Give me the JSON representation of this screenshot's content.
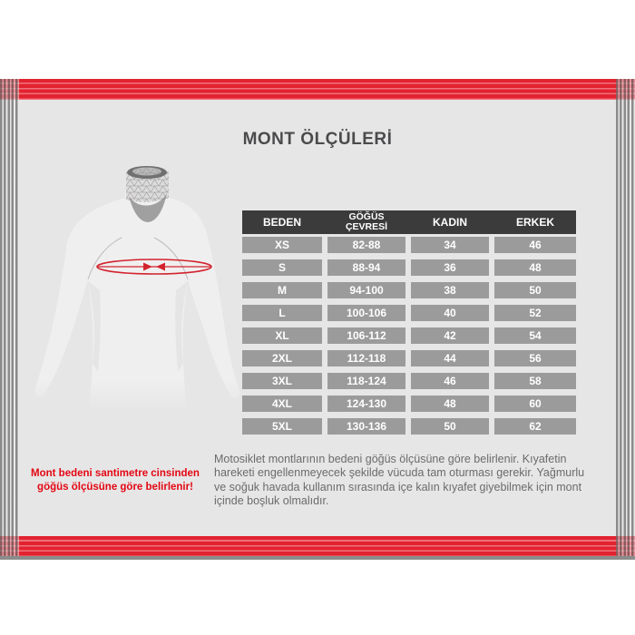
{
  "title": "MONT ÖLÇÜLERİ",
  "size_table": {
    "columns": [
      "BEDEN",
      "GÖĞÜS ÇEVRESİ",
      "KADIN",
      "ERKEK"
    ],
    "rows": [
      [
        "XS",
        "82-88",
        "34",
        "46"
      ],
      [
        "S",
        "88-94",
        "36",
        "48"
      ],
      [
        "M",
        "94-100",
        "38",
        "50"
      ],
      [
        "L",
        "100-106",
        "40",
        "52"
      ],
      [
        "XL",
        "106-112",
        "42",
        "54"
      ],
      [
        "2XL",
        "112-118",
        "44",
        "56"
      ],
      [
        "3XL",
        "118-124",
        "46",
        "58"
      ],
      [
        "4XL",
        "124-130",
        "48",
        "60"
      ],
      [
        "5XL",
        "130-136",
        "50",
        "62"
      ]
    ]
  },
  "red_note": [
    "Mont bedeni santimetre cinsinden",
    "göğüs ölçüsüne göre belirlenir!"
  ],
  "description": [
    "Motosiklet montlarının bedeni göğüs ölçüsüne göre belirlenir. Kıyafetin",
    "hareketi engellenmeyecek şekilde vücuda tam oturması gerekir. Yağmurlu",
    "ve soğuk havada kullanım sırasında içe kalın kıyafet giyebilmek için mont",
    "içinde boşluk olmalıdır."
  ],
  "figure": {
    "label": "wireframe torso with chest circumference measurement"
  },
  "colors": {
    "band_red": "#e32230",
    "accent_red": "#d2232e",
    "note_red": "#e30613",
    "table_header": "#3b3b3b",
    "cell_gray": "#9c9b9b",
    "content_bg": "#e7e6e6"
  }
}
